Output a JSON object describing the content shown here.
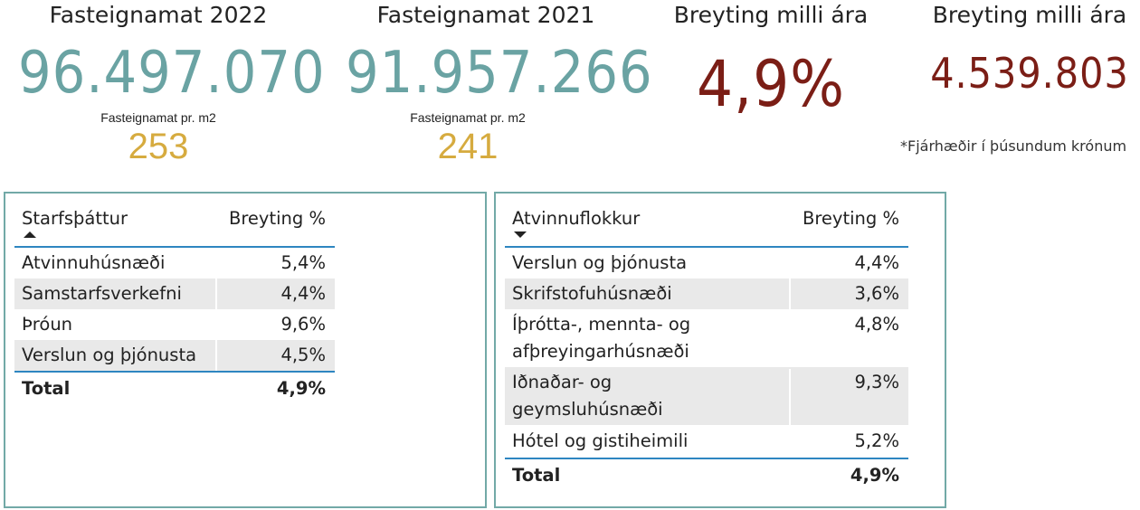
{
  "kpis": {
    "fasteignamat_2022": {
      "title": "Fasteignamat 2022",
      "value": "96.497.070",
      "sub_label": "Fasteignamat pr. m2",
      "sub_value": "253"
    },
    "fasteignamat_2021": {
      "title": "Fasteignamat 2021",
      "value": "91.957.266",
      "sub_label": "Fasteignamat pr. m2",
      "sub_value": "241"
    },
    "breyting_pct": {
      "title": "Breyting milli ára",
      "value": "4,9%"
    },
    "breyting_abs": {
      "title": "Breyting milli ára",
      "value": "4.539.803"
    },
    "note": "*Fjárhæðir í þúsundum krónum"
  },
  "colors": {
    "teal_value": "#6aa3a3",
    "gold_value": "#d6ab3f",
    "dark_red_value": "#7b1e16",
    "card_border": "#72a9a7",
    "table_rule": "#2e86c1",
    "row_band": "#e9e9e9"
  },
  "table_starfsthattur": {
    "headers": [
      "Starfsþáttur",
      "Breyting %"
    ],
    "sort": "ascending",
    "rows": [
      [
        "Atvinnuhúsnæði",
        "5,4%"
      ],
      [
        "Samstarfsverkefni",
        "4,4%"
      ],
      [
        "Þróun",
        "9,6%"
      ],
      [
        "Verslun og þjónusta",
        "4,5%"
      ]
    ],
    "total": [
      "Total",
      "4,9%"
    ]
  },
  "table_atvinnuflokkur": {
    "headers": [
      "Atvinnuflokkur",
      "Breyting %"
    ],
    "sort": "descending",
    "rows": [
      [
        "Verslun og þjónusta",
        "4,4%"
      ],
      [
        "Skrifstofuhúsnæði",
        "3,6%"
      ],
      [
        "Íþrótta-, mennta- og afþreyingarhúsnæði",
        "4,8%"
      ],
      [
        "Iðnaðar- og geymsluhúsnæði",
        "9,3%"
      ],
      [
        "Hótel og gistiheimili",
        "5,2%"
      ]
    ],
    "total": [
      "Total",
      "4,9%"
    ]
  }
}
